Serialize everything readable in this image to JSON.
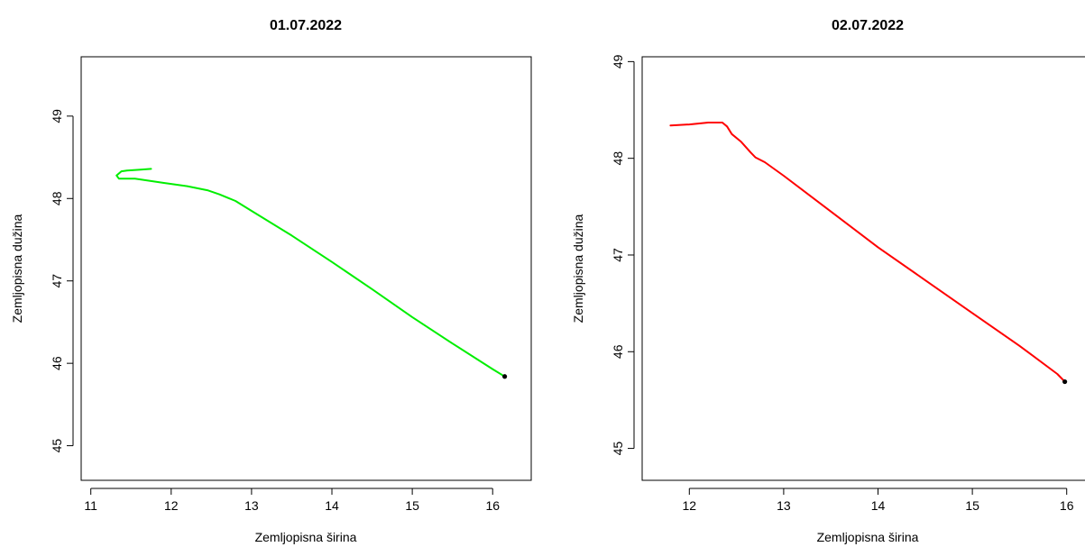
{
  "chart_data": [
    {
      "type": "line",
      "title": "01.07.2022",
      "xlabel": "Zemljopisna širina",
      "ylabel": "Zemljopisna dužina",
      "xticks": [
        "11",
        "12",
        "13",
        "14",
        "15",
        "16"
      ],
      "yticks": [
        "45",
        "46",
        "47",
        "48",
        "49"
      ],
      "xlim": [
        10.88,
        16.48
      ],
      "ylim": [
        44.58,
        49.72
      ],
      "grid": false,
      "series": [
        {
          "color": "#00ee00",
          "x": [
            11.75,
            11.62,
            11.45,
            11.38,
            11.32,
            11.35,
            11.55,
            11.9,
            12.2,
            12.45,
            12.6,
            12.8,
            13.0,
            13.5,
            14.0,
            14.5,
            15.0,
            15.5,
            16.0,
            16.15
          ],
          "y": [
            48.36,
            48.35,
            48.34,
            48.33,
            48.28,
            48.24,
            48.24,
            48.19,
            48.15,
            48.1,
            48.05,
            47.97,
            47.85,
            47.55,
            47.23,
            46.9,
            46.56,
            46.24,
            45.93,
            45.84
          ]
        }
      ],
      "endpoint": {
        "x": 16.15,
        "y": 45.84,
        "color": "#000000"
      }
    },
    {
      "type": "line",
      "title": "02.07.2022",
      "xlabel": "Zemljopisna širina",
      "ylabel": "Zemljopisna dužina",
      "xticks": [
        "12",
        "13",
        "14",
        "15",
        "16"
      ],
      "yticks": [
        "45",
        "46",
        "47",
        "48",
        "49"
      ],
      "xlim": [
        11.5,
        16.28
      ],
      "ylim": [
        44.67,
        49.05
      ],
      "grid": false,
      "series": [
        {
          "color": "#ff0000",
          "x": [
            11.8,
            12.0,
            12.2,
            12.35,
            12.4,
            12.45,
            12.55,
            12.65,
            12.7,
            12.8,
            13.0,
            13.5,
            14.0,
            14.5,
            15.0,
            15.5,
            15.9,
            15.98
          ],
          "y": [
            48.34,
            48.35,
            48.37,
            48.37,
            48.33,
            48.25,
            48.17,
            48.06,
            48.01,
            47.96,
            47.82,
            47.45,
            47.08,
            46.74,
            46.4,
            46.06,
            45.77,
            45.69
          ]
        }
      ],
      "endpoint": {
        "x": 15.98,
        "y": 45.69,
        "color": "#000000"
      }
    }
  ]
}
